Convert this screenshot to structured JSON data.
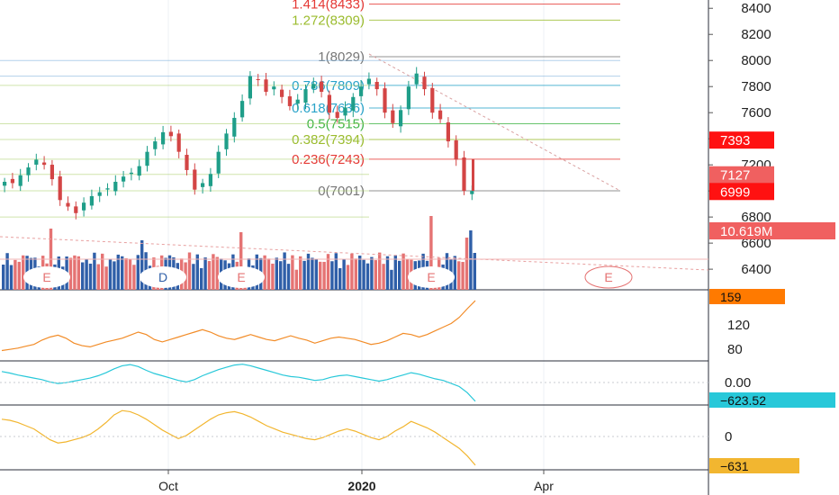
{
  "chart_data": [
    {
      "type": "candlestick",
      "panel": "price",
      "yticks": [
        6400,
        6600,
        6800,
        7000,
        7200,
        7400,
        7600,
        7800,
        8000,
        8200,
        8400
      ],
      "ylim": [
        6300,
        8470
      ],
      "xtick_labels": [
        "Oct",
        "2020",
        "Apr"
      ],
      "fib_levels": [
        {
          "label": "1.414(8433)",
          "value": 8433,
          "color": "#e53935"
        },
        {
          "label": "1.272(8309)",
          "value": 8309,
          "color": "#9bbc2e"
        },
        {
          "label": "1(8029)",
          "value": 8029,
          "color": "#777777"
        },
        {
          "label": "0.786(7809)",
          "value": 7809,
          "color": "#29a3c9"
        },
        {
          "label": "0.618(7636)",
          "value": 7636,
          "color": "#29a3c9"
        },
        {
          "label": "0.5(7515)",
          "value": 7515,
          "color": "#43b649"
        },
        {
          "label": "0.382(7394)",
          "value": 7394,
          "color": "#9bbc2e"
        },
        {
          "label": "0.236(7243)",
          "value": 7243,
          "color": "#e53935"
        },
        {
          "label": "0(7001)",
          "value": 7001,
          "color": "#777777"
        }
      ],
      "price_badges": [
        {
          "label": "7393",
          "color": "#ff1111"
        },
        {
          "label": "7127",
          "color": "#f06060"
        },
        {
          "label": "6999",
          "color": "#ff1111"
        },
        {
          "label": "10.619M",
          "color": "#f06060"
        }
      ],
      "earnings_markers": [
        "E",
        "D",
        "E",
        "E",
        "E"
      ],
      "closes": [
        7070,
        7060,
        7120,
        7180,
        7240,
        7200,
        7090,
        6930,
        6880,
        6830,
        6910,
        6960,
        6990,
        7020,
        7070,
        7110,
        7140,
        7190,
        7300,
        7380,
        7450,
        7420,
        7300,
        7160,
        7010,
        7060,
        7130,
        7300,
        7440,
        7560,
        7690,
        7880,
        7850,
        7760,
        7800,
        7720,
        7650,
        7700,
        7780,
        7820,
        7760,
        7600,
        7560,
        7640,
        7720,
        7800,
        7860,
        7780,
        7600,
        7520,
        7620,
        7800,
        7900,
        7780,
        7600,
        7550,
        7380,
        7240,
        7000,
        6999
      ],
      "up_colors": {
        "up": "#1f9e89",
        "down": "#d34545"
      }
    },
    {
      "type": "line",
      "panel": "indicator-1",
      "yticks": [
        80,
        120
      ],
      "last_value_label": "159",
      "color": "#f28c28",
      "values": [
        78,
        80,
        82,
        85,
        88,
        95,
        100,
        103,
        98,
        90,
        86,
        84,
        88,
        92,
        95,
        98,
        103,
        108,
        104,
        96,
        92,
        96,
        100,
        104,
        108,
        112,
        108,
        102,
        98,
        96,
        100,
        104,
        100,
        96,
        94,
        98,
        102,
        98,
        95,
        90,
        94,
        98,
        100,
        98,
        96,
        92,
        88,
        90,
        94,
        100,
        106,
        104,
        100,
        104,
        110,
        116,
        122,
        132,
        146,
        159
      ]
    },
    {
      "type": "line",
      "panel": "indicator-2",
      "yticks": [
        0.0
      ],
      "last_value_label": "−623.52",
      "color": "#28c8d9",
      "values": [
        150,
        110,
        60,
        20,
        -20,
        -60,
        -120,
        -160,
        -140,
        -100,
        -60,
        -20,
        40,
        120,
        220,
        300,
        330,
        280,
        180,
        100,
        40,
        -20,
        -80,
        -120,
        -60,
        40,
        120,
        200,
        260,
        320,
        340,
        300,
        240,
        180,
        120,
        60,
        20,
        0,
        -40,
        -80,
        -60,
        0,
        40,
        60,
        20,
        -20,
        -60,
        -100,
        -60,
        0,
        60,
        120,
        80,
        20,
        -40,
        -80,
        -160,
        -240,
        -400,
        -623.52
      ]
    },
    {
      "type": "line",
      "panel": "indicator-3",
      "yticks": [
        0
      ],
      "last_value_label": "−631",
      "color": "#f2b630",
      "values": [
        220,
        200,
        160,
        100,
        40,
        -60,
        -160,
        -220,
        -200,
        -160,
        -120,
        -60,
        40,
        160,
        300,
        380,
        360,
        300,
        220,
        120,
        20,
        -60,
        -140,
        -80,
        20,
        120,
        220,
        300,
        340,
        360,
        320,
        260,
        180,
        100,
        40,
        -20,
        -60,
        -100,
        -140,
        -160,
        -120,
        -60,
        0,
        40,
        0,
        -60,
        -120,
        -160,
        -100,
        0,
        80,
        180,
        120,
        60,
        -20,
        -120,
        -220,
        -320,
        -460,
        -631
      ]
    }
  ]
}
